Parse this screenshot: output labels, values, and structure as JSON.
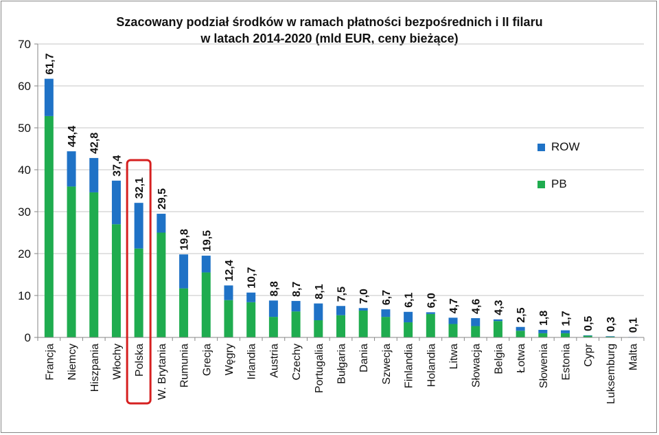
{
  "chart_data": {
    "type": "bar",
    "stacked": true,
    "title_line1": "Szacowany podział środków w ramach płatności bezpośrednich i II filaru",
    "title_line2": "w latach 2014-2020 (mld EUR, ceny bieżące)",
    "ylim": [
      0,
      70
    ],
    "yticks": [
      "0",
      "10",
      "20",
      "30",
      "40",
      "50",
      "60",
      "70"
    ],
    "grid": true,
    "legend_position": "right",
    "highlighted_category": "Polska",
    "categories": [
      "Francja",
      "Niemcy",
      "Hiszpania",
      "Włochy",
      "Polska",
      "W. Brytania",
      "Rumunia",
      "Grecja",
      "Węgry",
      "Irlandia",
      "Austria",
      "Czechy",
      "Portugalia",
      "Bułgaria",
      "Dania",
      "Szwecja",
      "Finlandia",
      "Holandia",
      "Litwa",
      "Słowacja",
      "Belgia",
      "Łotwa",
      "Słowenia",
      "Estonia",
      "Cypr",
      "Luksemburg",
      "Malta"
    ],
    "totals_labels": [
      "61,7",
      "44,4",
      "42,8",
      "37,4",
      "32,1",
      "29,5",
      "19,8",
      "19,5",
      "12,4",
      "10,7",
      "8,8",
      "8,7",
      "8,1",
      "7,5",
      "7,0",
      "6,7",
      "6,1",
      "6,0",
      "4,7",
      "4,6",
      "4,3",
      "2,5",
      "1,8",
      "1,7",
      "0,5",
      "0,3",
      "0,1"
    ],
    "series": [
      {
        "name": "PB",
        "color": "#1fac4f",
        "values": [
          52.8,
          36.0,
          34.6,
          27.0,
          21.2,
          25.0,
          11.7,
          15.5,
          8.9,
          8.4,
          4.9,
          6.2,
          4.1,
          5.3,
          6.4,
          4.9,
          3.6,
          5.6,
          3.2,
          2.7,
          3.9,
          1.6,
          1.0,
          1.0,
          0.4,
          0.2,
          0.05
        ]
      },
      {
        "name": "ROW",
        "color": "#1f72c6",
        "values": [
          8.9,
          8.4,
          8.2,
          10.4,
          10.9,
          4.5,
          8.1,
          4.0,
          3.5,
          2.3,
          3.9,
          2.5,
          4.0,
          2.2,
          0.6,
          1.8,
          2.5,
          0.4,
          1.5,
          1.9,
          0.4,
          0.9,
          0.8,
          0.7,
          0.1,
          0.1,
          0.05
        ]
      }
    ],
    "legend": [
      {
        "label": "ROW",
        "color": "#1f72c6"
      },
      {
        "label": "PB",
        "color": "#1fac4f"
      }
    ],
    "highlight_color": "#d62020"
  }
}
